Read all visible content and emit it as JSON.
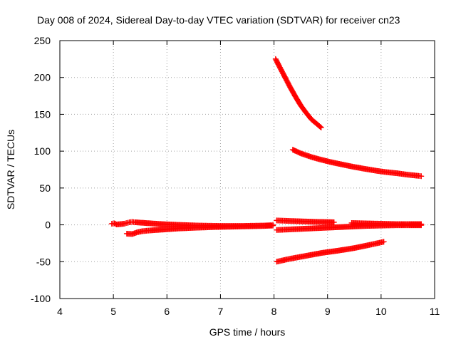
{
  "chart_data": {
    "type": "scatter",
    "title": "Day 008 of 2024, Sidereal Day-to-day VTEC variation (SDTVAR) for receiver cn23",
    "xlabel": "GPS time / hours",
    "ylabel": "SDTVAR / TECUs",
    "xlim": [
      4,
      11
    ],
    "ylim": [
      -100,
      250
    ],
    "xticks": [
      4,
      5,
      6,
      7,
      8,
      9,
      10,
      11
    ],
    "yticks": [
      -100,
      -50,
      0,
      50,
      100,
      150,
      200,
      250
    ],
    "grid": true,
    "marker": "+",
    "color": "#ff0000",
    "series": [
      {
        "points": [
          [
            4.97,
            1.5
          ],
          [
            5.02,
            2.0
          ],
          [
            5.06,
            0.5
          ],
          [
            5.2,
            1.5
          ],
          [
            5.25,
            2.5
          ],
          [
            5.3,
            3.5
          ],
          [
            5.35,
            4.0
          ],
          [
            5.4,
            3.5
          ],
          [
            5.5,
            3.0
          ],
          [
            5.7,
            2.0
          ],
          [
            5.9,
            1.0
          ],
          [
            6.2,
            0.0
          ],
          [
            6.6,
            -1.0
          ],
          [
            7.0,
            -1.5
          ],
          [
            7.4,
            -1.5
          ],
          [
            7.8,
            -1.0
          ],
          [
            7.95,
            -0.5
          ],
          [
            7.98,
            0.0
          ]
        ]
      },
      {
        "points": [
          [
            5.25,
            -12.0
          ],
          [
            5.35,
            -12.5
          ],
          [
            5.45,
            -10.0
          ],
          [
            5.55,
            -8.5
          ],
          [
            5.7,
            -7.5
          ],
          [
            5.9,
            -6.5
          ],
          [
            6.2,
            -5.0
          ],
          [
            6.5,
            -4.0
          ],
          [
            6.9,
            -3.0
          ],
          [
            7.2,
            -2.5
          ],
          [
            7.5,
            -2.0
          ],
          [
            7.8,
            -1.5
          ],
          [
            7.98,
            -1.0
          ]
        ]
      },
      {
        "points": [
          [
            8.03,
            225.0
          ],
          [
            8.1,
            215.0
          ],
          [
            8.2,
            201.0
          ],
          [
            8.3,
            187.0
          ],
          [
            8.4,
            174.0
          ],
          [
            8.5,
            162.0
          ],
          [
            8.6,
            152.0
          ],
          [
            8.7,
            143.0
          ],
          [
            8.8,
            137.0
          ],
          [
            8.88,
            132.0
          ]
        ]
      },
      {
        "points": [
          [
            8.35,
            102.0
          ],
          [
            8.5,
            97.0
          ],
          [
            8.7,
            92.0
          ],
          [
            8.9,
            88.0
          ],
          [
            9.1,
            84.5
          ],
          [
            9.3,
            81.5
          ],
          [
            9.5,
            78.5
          ],
          [
            9.7,
            76.0
          ],
          [
            9.9,
            73.5
          ],
          [
            10.1,
            71.5
          ],
          [
            10.3,
            70.0
          ],
          [
            10.5,
            68.0
          ],
          [
            10.7,
            66.5
          ],
          [
            10.75,
            66.0
          ]
        ]
      },
      {
        "points": [
          [
            8.05,
            6.0
          ],
          [
            8.2,
            5.5
          ],
          [
            8.4,
            5.0
          ],
          [
            8.6,
            4.5
          ],
          [
            8.8,
            4.0
          ],
          [
            9.0,
            3.8
          ],
          [
            9.12,
            3.5
          ]
        ]
      },
      {
        "points": [
          [
            8.05,
            -7.0
          ],
          [
            8.2,
            -6.5
          ],
          [
            8.5,
            -5.5
          ],
          [
            8.8,
            -4.5
          ],
          [
            9.1,
            -3.5
          ],
          [
            9.4,
            -2.5
          ],
          [
            9.7,
            -1.5
          ],
          [
            10.0,
            -1.0
          ],
          [
            10.3,
            -0.5
          ],
          [
            10.55,
            -0.5
          ],
          [
            10.75,
            -0.5
          ]
        ]
      },
      {
        "points": [
          [
            9.45,
            2.5
          ],
          [
            9.7,
            2.0
          ],
          [
            10.0,
            1.5
          ],
          [
            10.3,
            1.0
          ],
          [
            10.55,
            1.0
          ],
          [
            10.75,
            1.0
          ]
        ]
      },
      {
        "points": [
          [
            8.05,
            -50.0
          ],
          [
            8.3,
            -46.0
          ],
          [
            8.6,
            -42.0
          ],
          [
            8.9,
            -38.0
          ],
          [
            9.2,
            -35.0
          ],
          [
            9.5,
            -31.5
          ],
          [
            9.8,
            -27.0
          ],
          [
            10.05,
            -23.0
          ]
        ]
      }
    ]
  }
}
